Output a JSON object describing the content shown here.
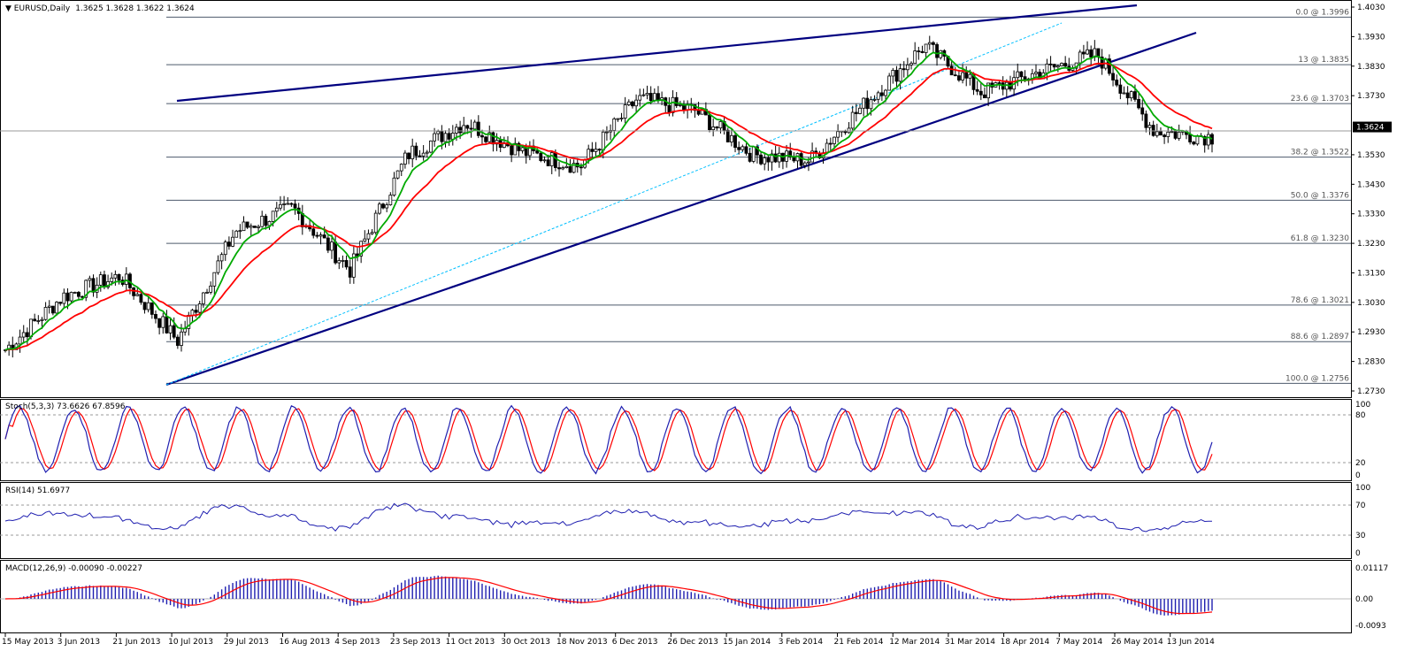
{
  "colors": {
    "frame": "#000000",
    "candle": "#000000",
    "ma_fast": "#00aa00",
    "ma_slow": "#ff0000",
    "ma_highlight": "#ffff00",
    "trendline": "#000080",
    "channel_dotted": "#00bfff",
    "fib_line": "#4d5a6b",
    "stoch_main": "#1f1fb0",
    "stoch_signal": "#ff0000",
    "rsi": "#1f1fb0",
    "macd_hist": "#1f1fb0",
    "macd_signal": "#ff0000",
    "price_label_bg": "#000000",
    "price_label_fg": "#ffffff"
  },
  "price_panel": {
    "title": "EURUSD,Daily",
    "ohlc": "1.3625 1.3628 1.3622 1.3624",
    "current_price": "1.3624",
    "y_labels": [
      "1.4030",
      "1.3930",
      "1.3830",
      "1.3730",
      "1.3624",
      "1.3530",
      "1.3430",
      "1.3330",
      "1.3230",
      "1.3130",
      "1.3030",
      "1.2930",
      "1.2830",
      "1.2730"
    ],
    "fib_levels": [
      {
        "label": "0.0 @ 1.3996",
        "price": 1.3996
      },
      {
        "label": "13 @ 1.3835",
        "price": 1.3835
      },
      {
        "label": "23.6 @ 1.3703",
        "price": 1.3703
      },
      {
        "label": "38.2 @ 1.3522",
        "price": 1.3522
      },
      {
        "label": "50.0 @ 1.3376",
        "price": 1.3376
      },
      {
        "label": "61.8 @ 1.3230",
        "price": 1.323
      },
      {
        "label": "78.6 @ 1.3021",
        "price": 1.3021
      },
      {
        "label": "88.6 @ 1.2897",
        "price": 1.2897
      },
      {
        "label": "100.0 @ 1.2756",
        "price": 1.2756
      }
    ]
  },
  "stoch_panel": {
    "title": "Stoch(5,3,3) 73.6626 67.8596",
    "y_labels": [
      "100",
      "80",
      "20",
      "0"
    ]
  },
  "rsi_panel": {
    "title": "RSI(14) 51.6977",
    "y_labels": [
      "100",
      "70",
      "30",
      "0"
    ]
  },
  "macd_panel": {
    "title": "MACD(12,26,9) -0.00090 -0.00227",
    "y_labels": [
      "0.01117",
      "0.00",
      "-0.0093"
    ]
  },
  "x_labels": [
    "15 May 2013",
    "3 Jun 2013",
    "21 Jun 2013",
    "10 Jul 2013",
    "29 Jul 2013",
    "16 Aug 2013",
    "4 Sep 2013",
    "23 Sep 2013",
    "11 Oct 2013",
    "30 Oct 2013",
    "18 Nov 2013",
    "6 Dec 2013",
    "26 Dec 2013",
    "15 Jan 2014",
    "3 Feb 2014",
    "21 Feb 2014",
    "12 Mar 2014",
    "31 Mar 2014",
    "18 Apr 2014",
    "7 May 2014",
    "26 May 2014",
    "13 Jun 2014"
  ],
  "chart_data": {
    "type": "line",
    "symbol": "EURUSD",
    "timeframe": "Daily",
    "ylim": [
      1.273,
      1.403
    ],
    "series": [
      {
        "name": "EURUSD",
        "x": [
          "15 May 2013",
          "3 Jun 2013",
          "21 Jun 2013",
          "10 Jul 2013",
          "29 Jul 2013",
          "16 Aug 2013",
          "4 Sep 2013",
          "23 Sep 2013",
          "11 Oct 2013",
          "30 Oct 2013",
          "18 Nov 2013",
          "6 Dec 2013",
          "26 Dec 2013",
          "15 Jan 2014",
          "3 Feb 2014",
          "21 Feb 2014",
          "12 Mar 2014",
          "31 Mar 2014",
          "18 Apr 2014",
          "7 May 2014",
          "26 May 2014",
          "13 Jun 2014"
        ],
        "values": [
          1.287,
          1.305,
          1.312,
          1.29,
          1.327,
          1.335,
          1.314,
          1.353,
          1.364,
          1.354,
          1.349,
          1.372,
          1.368,
          1.353,
          1.351,
          1.371,
          1.39,
          1.374,
          1.381,
          1.387,
          1.361,
          1.359
        ]
      }
    ]
  }
}
